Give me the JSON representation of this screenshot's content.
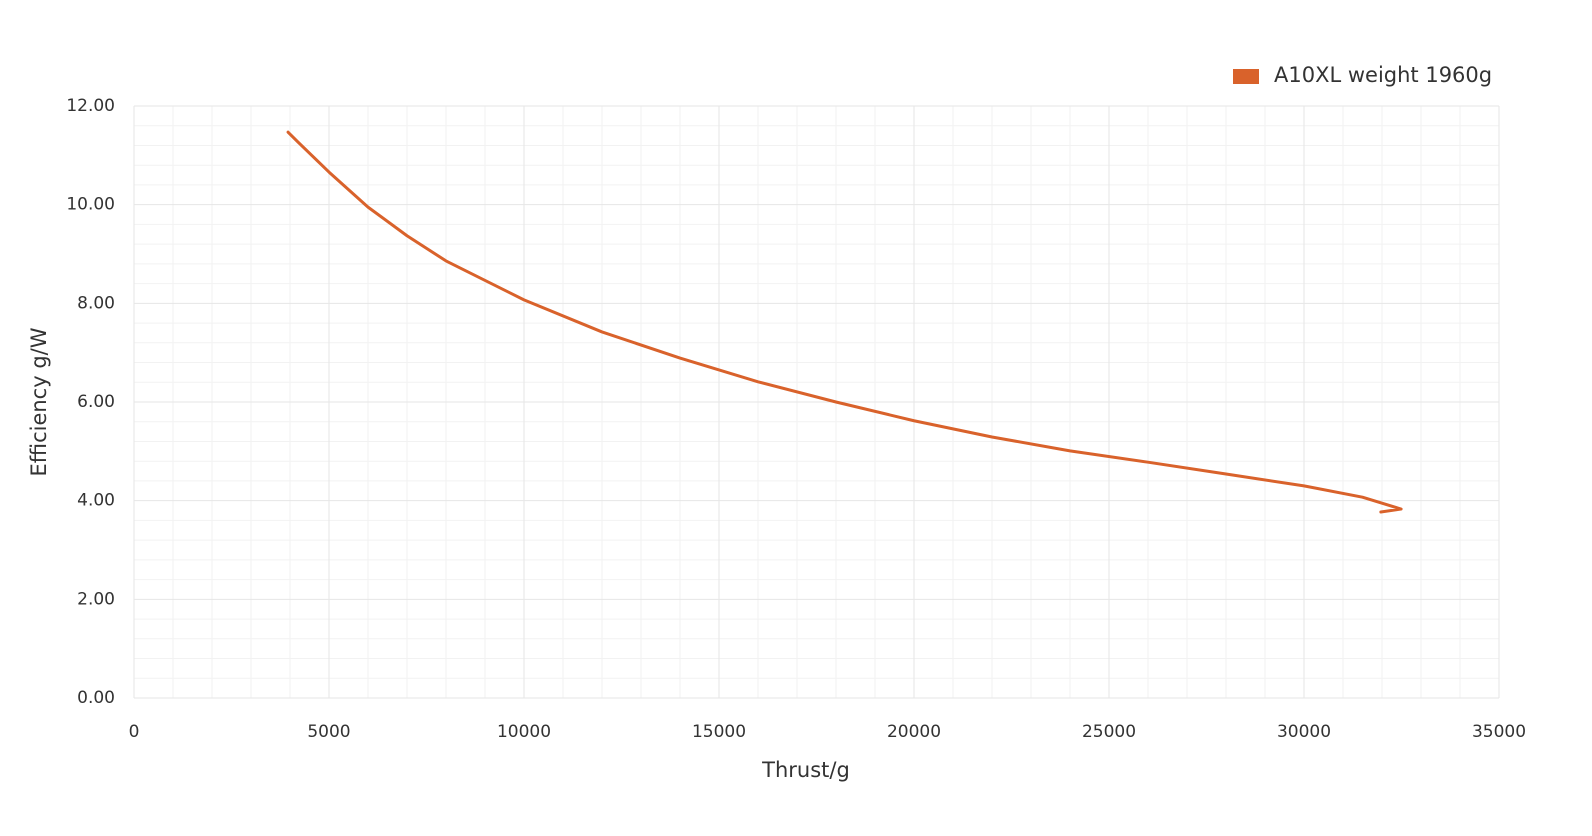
{
  "chart_data": {
    "type": "line",
    "x_label": "Thrust/g",
    "y_label": "Efficiency g/W",
    "series": [
      {
        "name": "A10XL weight 1960g",
        "color": "#d9622b",
        "x": [
          3950,
          4205,
          5000,
          6000,
          7000,
          8000,
          10000,
          12000,
          14000,
          16000,
          18000,
          20000,
          22000,
          24000,
          26000,
          28000,
          30000,
          31500,
          32490,
          31970
        ],
        "values": [
          11.47,
          11.27,
          10.66,
          9.95,
          9.37,
          8.86,
          8.07,
          7.42,
          6.89,
          6.41,
          6.0,
          5.62,
          5.29,
          5.01,
          4.78,
          4.54,
          4.3,
          4.07,
          3.83,
          3.77
        ]
      }
    ],
    "xlim": [
      0,
      35000
    ],
    "xticks": [
      0,
      5000,
      10000,
      15000,
      20000,
      25000,
      30000,
      35000
    ],
    "ylim": [
      0,
      12
    ],
    "yticks": [
      {
        "value": 0,
        "label": "0.00"
      },
      {
        "value": 2,
        "label": "2.00"
      },
      {
        "value": 4,
        "label": "4.00"
      },
      {
        "value": 6,
        "label": "6.00"
      },
      {
        "value": 8,
        "label": "8.00"
      },
      {
        "value": 10,
        "label": "10.00"
      },
      {
        "value": 12,
        "label": "12.00"
      }
    ],
    "grid": true,
    "legend": "top-right"
  }
}
